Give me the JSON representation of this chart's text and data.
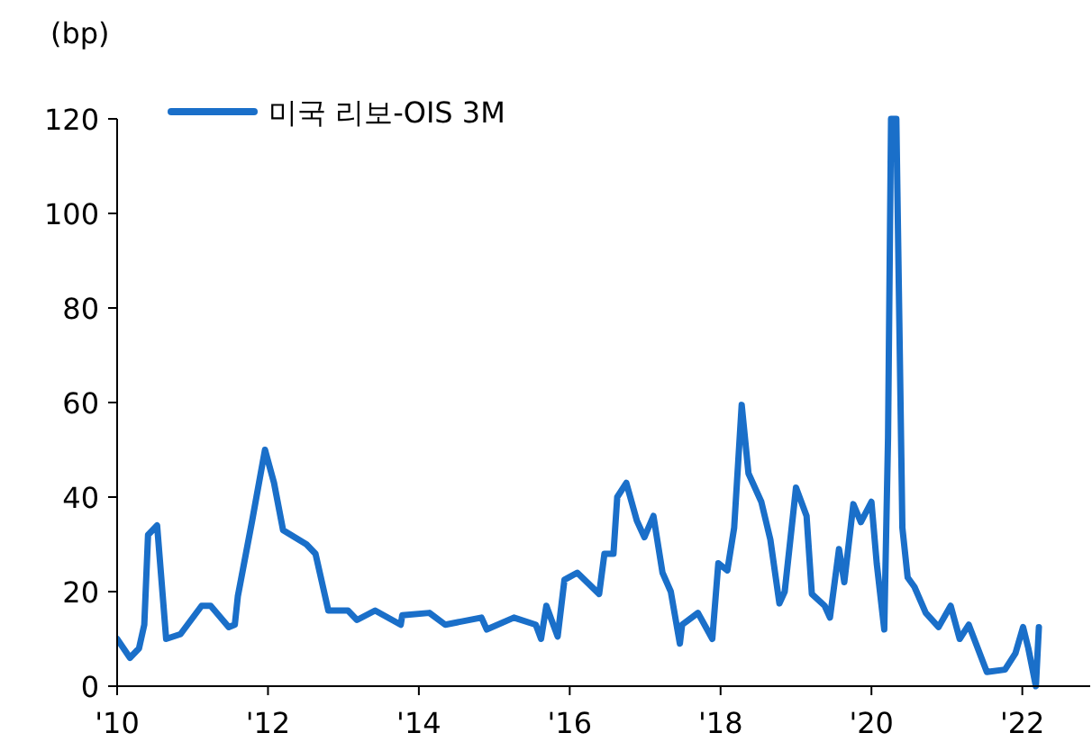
{
  "chart_data": {
    "type": "line",
    "ylabel": "(bp)",
    "x": [
      2010.0,
      2010.17,
      2010.29,
      2010.36,
      2010.41,
      2010.53,
      2010.65,
      2010.84,
      2011.12,
      2011.24,
      2011.48,
      2011.56,
      2011.6,
      2011.79,
      2011.96,
      2012.08,
      2012.2,
      2012.51,
      2012.63,
      2012.8,
      2013.06,
      2013.18,
      2013.42,
      2013.76,
      2013.78,
      2014.14,
      2014.35,
      2014.83,
      2014.9,
      2015.26,
      2015.55,
      2015.62,
      2015.69,
      2015.84,
      2015.93,
      2016.1,
      2016.39,
      2016.46,
      2016.58,
      2016.63,
      2016.75,
      2016.89,
      2016.99,
      2017.11,
      2017.23,
      2017.34,
      2017.46,
      2017.49,
      2017.7,
      2017.89,
      2017.97,
      2018.09,
      2018.18,
      2018.28,
      2018.37,
      2018.54,
      2018.66,
      2018.78,
      2018.85,
      2019.0,
      2019.14,
      2019.21,
      2019.38,
      2019.45,
      2019.5,
      2019.57,
      2019.64,
      2019.76,
      2019.86,
      2020.0,
      2020.07,
      2020.17,
      2020.22,
      2020.26,
      2020.33,
      2020.41,
      2020.48,
      2020.57,
      2020.72,
      2020.89,
      2021.05,
      2021.17,
      2021.29,
      2021.53,
      2021.77,
      2021.91,
      2022.01,
      2022.08,
      2022.18,
      2022.22
    ],
    "series": [
      {
        "name": "미국 리보-OIS 3M",
        "color": "#1a6fc9",
        "values": [
          10,
          6,
          8,
          13,
          32,
          34,
          10,
          11,
          17,
          17,
          12.5,
          13,
          19,
          35,
          50,
          43,
          33,
          30,
          28,
          16,
          16,
          14,
          16,
          13,
          15,
          15.5,
          13,
          14.5,
          12,
          14.5,
          13,
          10,
          17,
          10.5,
          22.5,
          24,
          19.5,
          28,
          28,
          40,
          43,
          35,
          31.5,
          36,
          24,
          20,
          9,
          13,
          15.5,
          10,
          26,
          24.5,
          33.5,
          59.5,
          45,
          39,
          31,
          17.5,
          20,
          42,
          36,
          19.5,
          17,
          14.5,
          20.5,
          29,
          22,
          38.5,
          34.7,
          39,
          26,
          12,
          52.5,
          120,
          120,
          33.5,
          23,
          21,
          15.5,
          12.5,
          17,
          10,
          13,
          3,
          3.5,
          7,
          12.5,
          8,
          0,
          12.5
        ]
      }
    ],
    "xlim": [
      2010,
      2022.9
    ],
    "ylim": [
      0,
      120
    ],
    "xticks": [
      {
        "value": 2010,
        "label": "'10"
      },
      {
        "value": 2012,
        "label": "'12"
      },
      {
        "value": 2014,
        "label": "'14"
      },
      {
        "value": 2016,
        "label": "'16"
      },
      {
        "value": 2018,
        "label": "'18"
      },
      {
        "value": 2020,
        "label": "'20"
      },
      {
        "value": 2022,
        "label": "'22"
      }
    ],
    "yticks": [
      0,
      20,
      40,
      60,
      80,
      100,
      120
    ],
    "legend": "top left"
  }
}
